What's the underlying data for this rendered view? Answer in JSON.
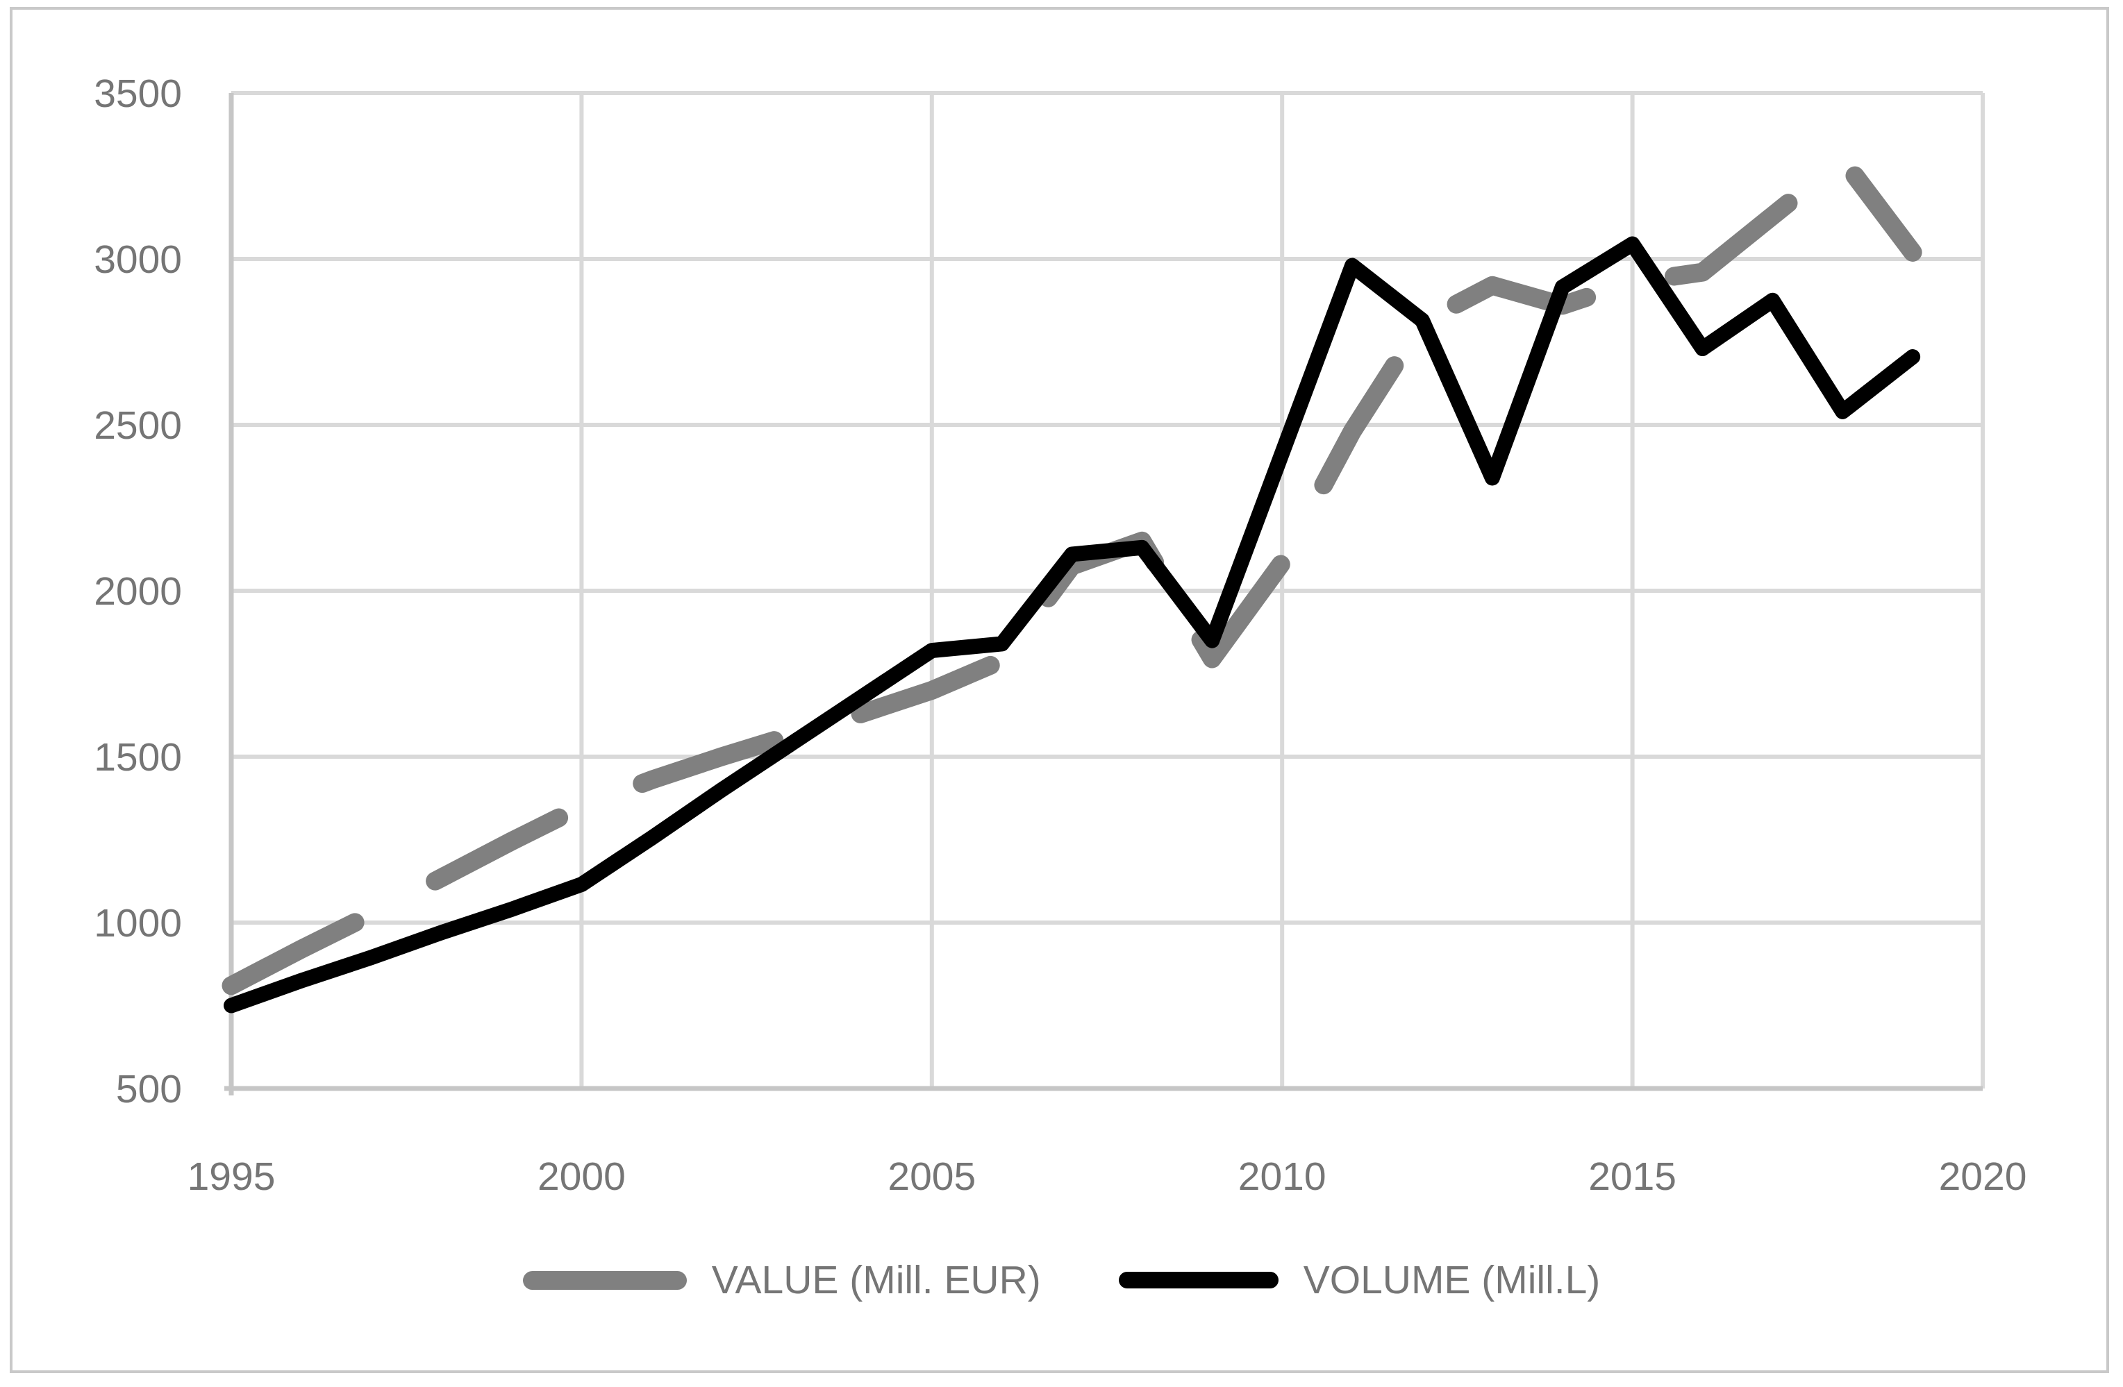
{
  "chart_data": {
    "type": "line",
    "title": "",
    "xlabel": "",
    "ylabel": "",
    "x": [
      1995,
      1996,
      1997,
      1998,
      1999,
      2000,
      2001,
      2002,
      2003,
      2004,
      2005,
      2006,
      2007,
      2008,
      2009,
      2010,
      2011,
      2012,
      2013,
      2014,
      2015,
      2016,
      2017,
      2018,
      2019
    ],
    "series": [
      {
        "name": "VALUE (Mill. EUR)",
        "style": "dashed",
        "color": "#808080",
        "values": [
          810,
          920,
          1025,
          1135,
          1245,
          1350,
          1430,
          1500,
          1565,
          1630,
          1700,
          1790,
          2075,
          2150,
          1795,
          2085,
          2480,
          2810,
          2920,
          2860,
          2930,
          2960,
          3130,
          3300,
          3020
        ]
      },
      {
        "name": "VOLUME (Mill.L)",
        "style": "solid",
        "color": "#000000",
        "values": [
          750,
          825,
          895,
          970,
          1040,
          1115,
          1255,
          1400,
          1540,
          1680,
          1820,
          1840,
          2110,
          2130,
          1850,
          2415,
          2980,
          2815,
          2340,
          2915,
          3045,
          2730,
          2875,
          2540,
          2705
        ]
      }
    ],
    "xlim": [
      1995,
      2020
    ],
    "ylim": [
      500,
      3500
    ],
    "x_ticks": [
      1995,
      2000,
      2005,
      2010,
      2015,
      2020
    ],
    "y_ticks": [
      500,
      1000,
      1500,
      2000,
      2500,
      3000,
      3500
    ],
    "grid": true,
    "legend_position": "bottom"
  },
  "legend": {
    "items": [
      {
        "label": "VALUE (Mill. EUR)"
      },
      {
        "label": "VOLUME (Mill.L)"
      }
    ]
  },
  "colors": {
    "background": "#ffffff",
    "frame_border": "#c9c9c9",
    "gridline": "#d9d9d9",
    "axis_line": "#c6c6c6",
    "tick_label": "#757575",
    "value_series": "#808080",
    "volume_series": "#000000"
  }
}
